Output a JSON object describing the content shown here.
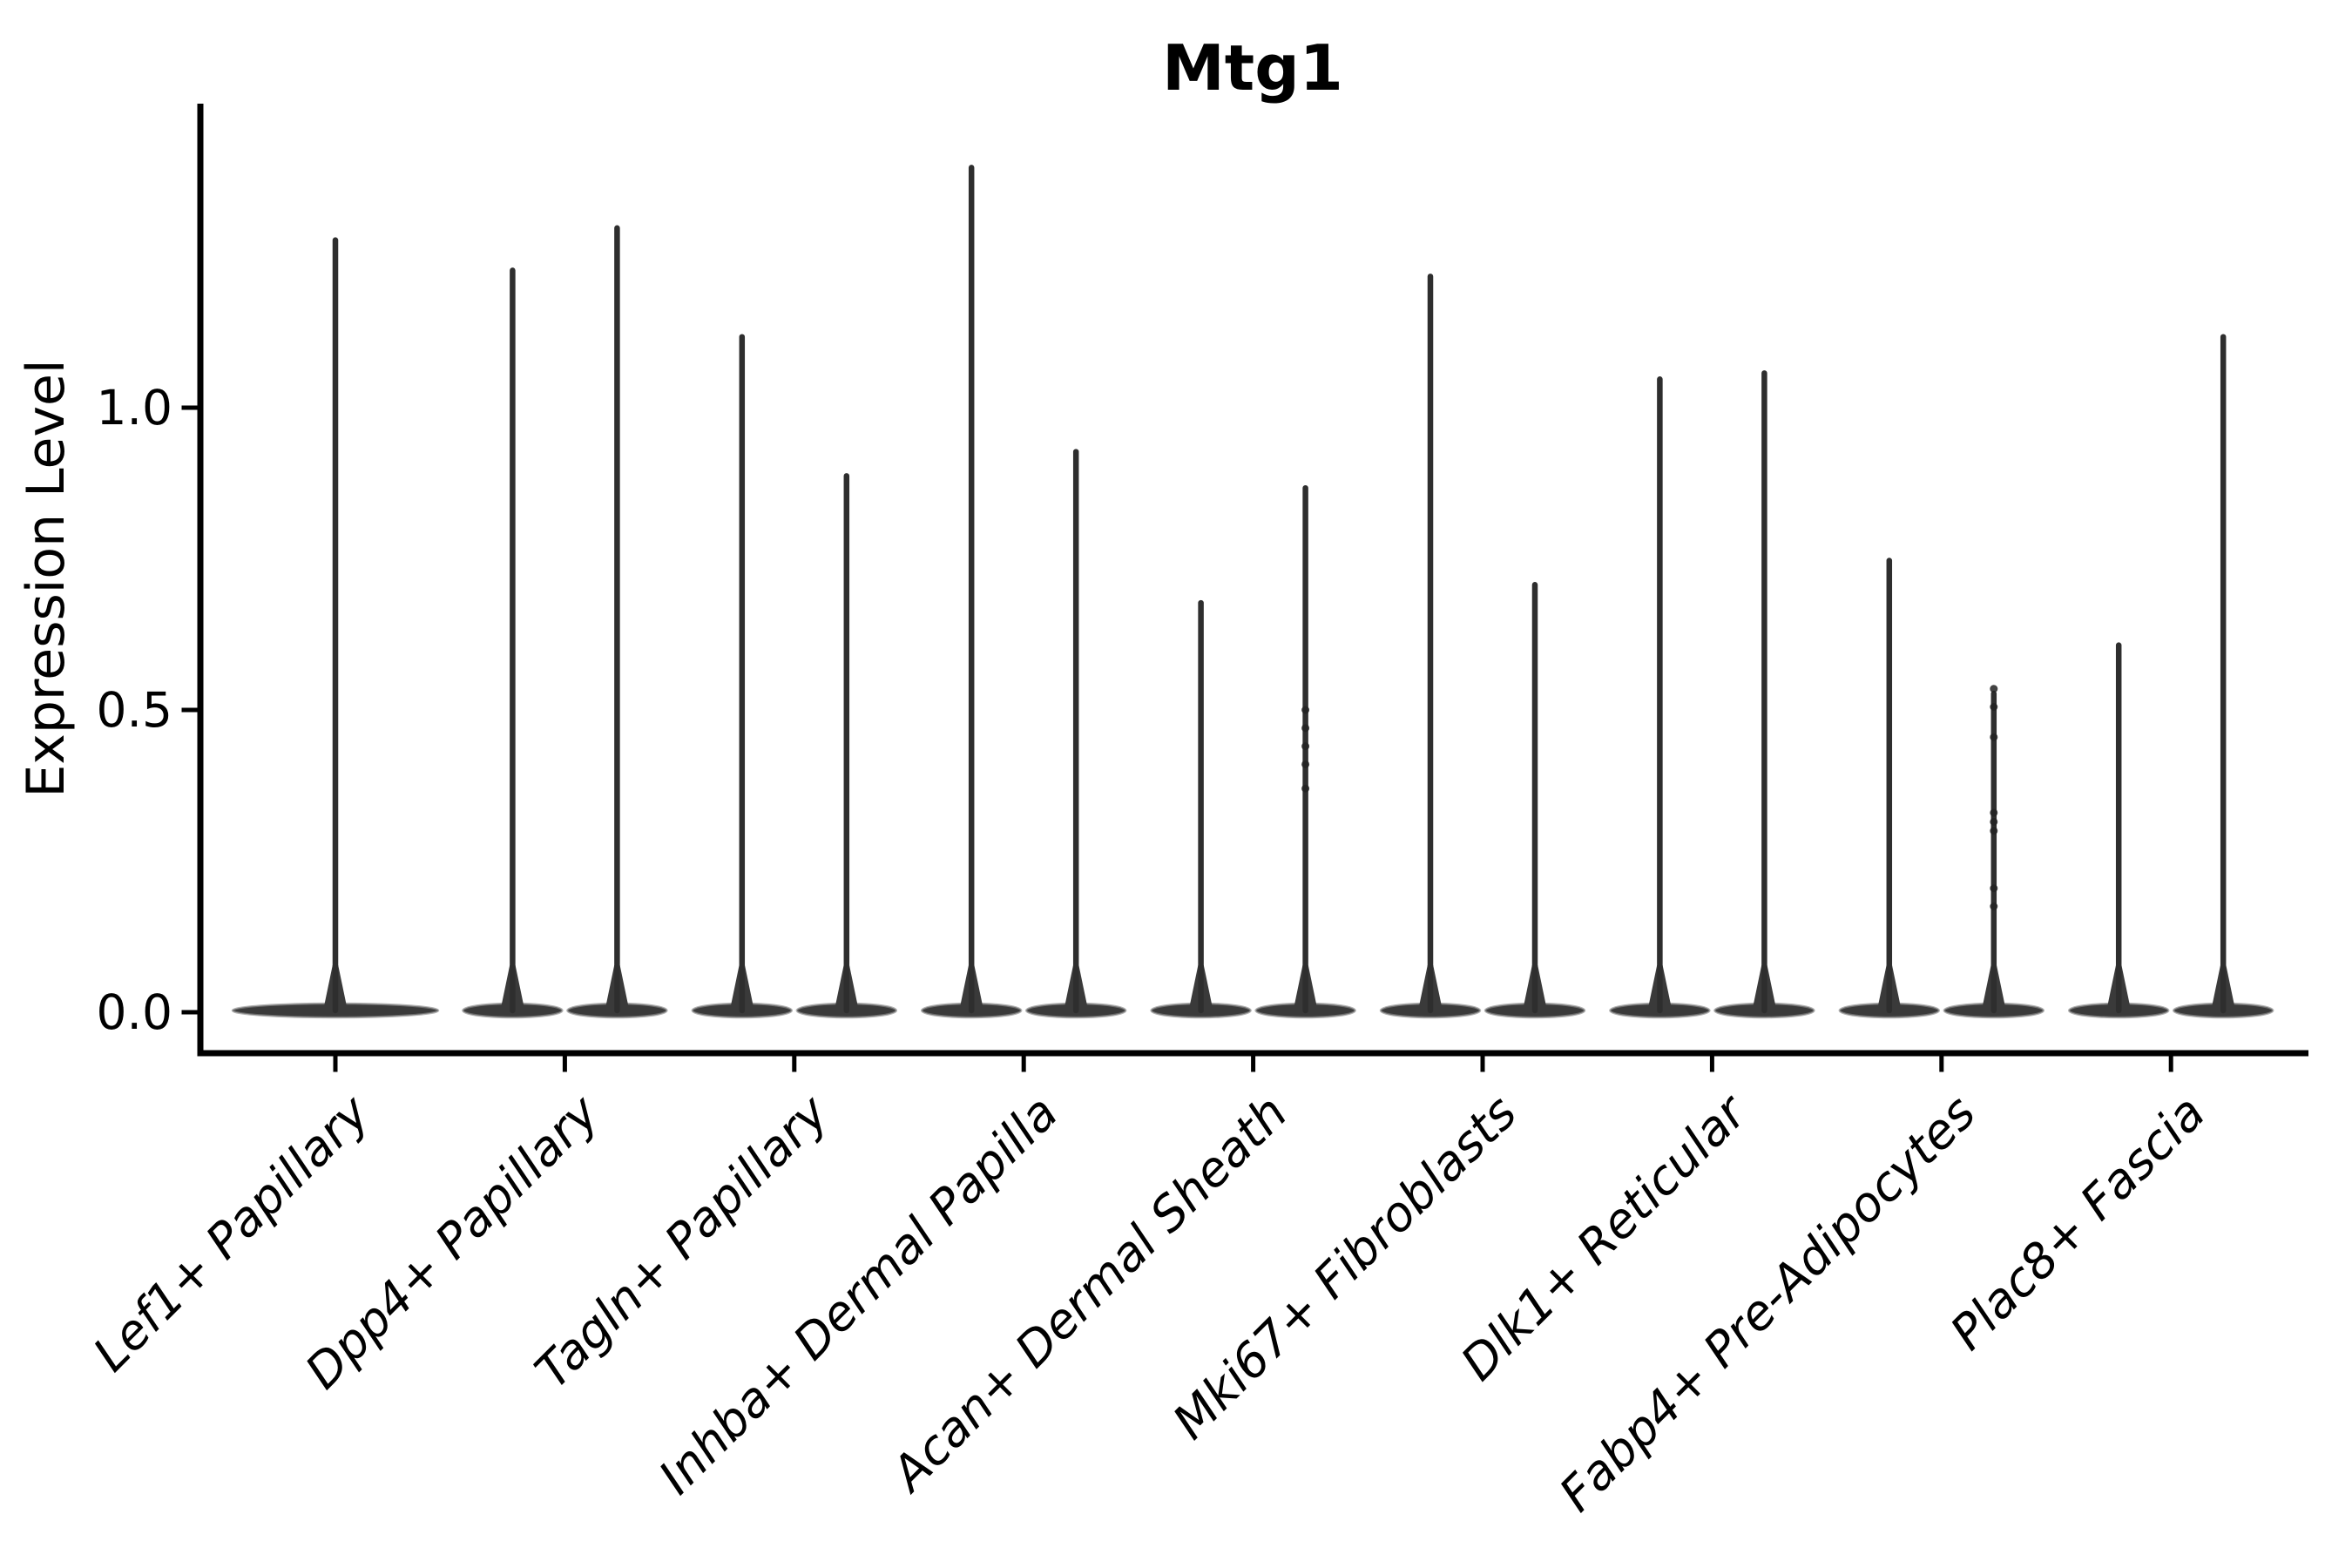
{
  "chart_data": {
    "type": "violin",
    "title": "Mtg1",
    "xlabel": "",
    "ylabel": "Expression Level",
    "y_ticks": [
      "0.0",
      "0.5",
      "1.0"
    ],
    "y_tick_values": [
      0.0,
      0.5,
      1.0
    ],
    "ylim": [
      -0.07,
      1.51
    ],
    "grid": false,
    "legend": null,
    "baseline_value": 0.0,
    "categories": [
      "Lef1+ Papillary",
      "Dpp4+ Papillary",
      "Tagln+ Papillary",
      "Inhba+ Dermal Papilla",
      "Acan+ Dermal Sheath",
      "Mki67+ Fibroblasts",
      "Dlk1+ Reticular",
      "Fabp4+ Pre-Adipocytes",
      "Plac8+ Fascia"
    ],
    "violins": [
      {
        "category": "Lef1+ Papillary",
        "violins": [
          {
            "side": "single",
            "max_expression": 1.28,
            "baseline": 0.0,
            "jitter_points": []
          }
        ]
      },
      {
        "category": "Dpp4+ Papillary",
        "violins": [
          {
            "side": "left",
            "max_expression": 1.23,
            "baseline": 0.0,
            "jitter_points": []
          },
          {
            "side": "right",
            "max_expression": 1.3,
            "baseline": 0.0,
            "jitter_points": []
          }
        ]
      },
      {
        "category": "Tagln+ Papillary",
        "violins": [
          {
            "side": "left",
            "max_expression": 1.12,
            "baseline": 0.0,
            "jitter_points": []
          },
          {
            "side": "right",
            "max_expression": 0.89,
            "baseline": 0.0,
            "jitter_points": []
          }
        ]
      },
      {
        "category": "Inhba+ Dermal Papilla",
        "violins": [
          {
            "side": "left",
            "max_expression": 1.4,
            "baseline": 0.0,
            "jitter_points": []
          },
          {
            "side": "right",
            "max_expression": 0.93,
            "baseline": 0.0,
            "jitter_points": []
          }
        ]
      },
      {
        "category": "Acan+ Dermal Sheath",
        "violins": [
          {
            "side": "left",
            "max_expression": 0.68,
            "baseline": 0.0,
            "jitter_points": []
          },
          {
            "side": "right",
            "max_expression": 0.87,
            "baseline": 0.0,
            "jitter_points": [
              0.5,
              0.47,
              0.44,
              0.41,
              0.37
            ]
          }
        ]
      },
      {
        "category": "Mki67+ Fibroblasts",
        "violins": [
          {
            "side": "left",
            "max_expression": 1.22,
            "baseline": 0.0,
            "jitter_points": []
          },
          {
            "side": "right",
            "max_expression": 0.71,
            "baseline": 0.0,
            "jitter_points": []
          }
        ]
      },
      {
        "category": "Dlk1+ Reticular",
        "violins": [
          {
            "side": "left",
            "max_expression": 1.05,
            "baseline": 0.0,
            "jitter_points": []
          },
          {
            "side": "right",
            "max_expression": 1.06,
            "baseline": 0.0,
            "jitter_points": []
          }
        ]
      },
      {
        "category": "Fabp4+ Pre-Adipocytes",
        "violins": [
          {
            "side": "left",
            "max_expression": 0.75,
            "baseline": 0.0,
            "jitter_points": []
          },
          {
            "side": "right",
            "max_expression": 0.53,
            "baseline": 0.0,
            "jitter_points": [
              0.535,
              0.505,
              0.455,
              0.33,
              0.315,
              0.3,
              0.205,
              0.175
            ]
          }
        ]
      },
      {
        "category": "Plac8+ Fascia",
        "violins": [
          {
            "side": "left",
            "max_expression": 0.61,
            "baseline": 0.0,
            "jitter_points": []
          },
          {
            "side": "right",
            "max_expression": 1.12,
            "baseline": 0.0,
            "jitter_points": []
          }
        ]
      }
    ],
    "style": {
      "violin_fill": "#3a3a3a",
      "violin_edge": "#8a8a8a",
      "spike_color": "#2e2e2e",
      "point_color": "#222222",
      "axis_color": "#000000",
      "text_color": "#000000",
      "background": "#ffffff"
    }
  }
}
